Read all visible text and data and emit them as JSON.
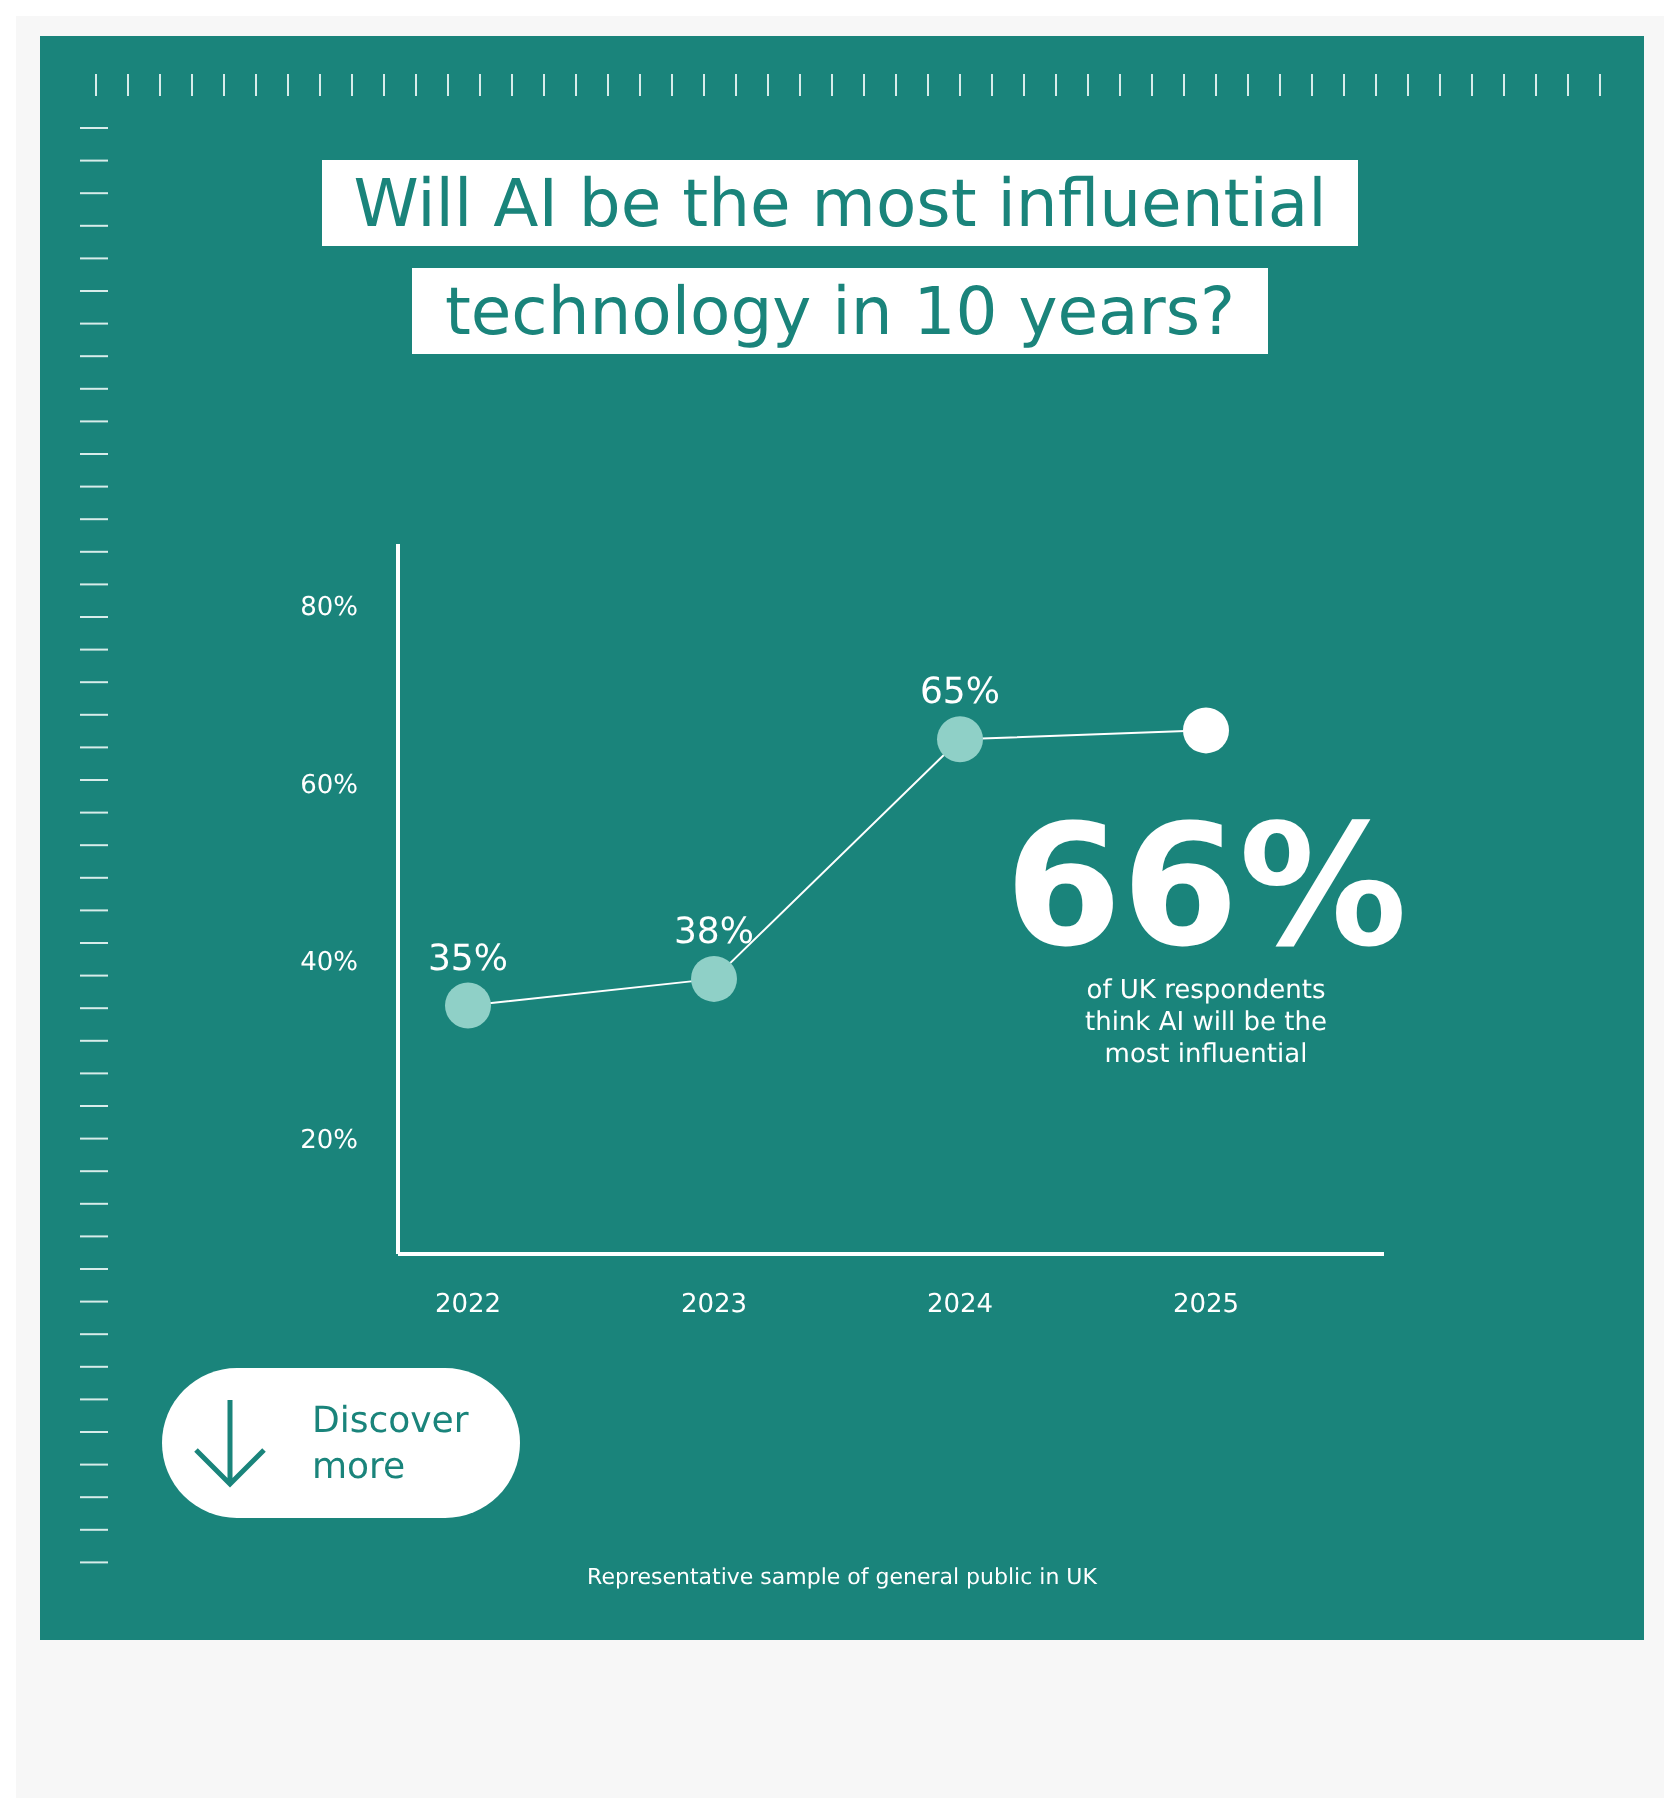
{
  "chart_data": {
    "type": "line",
    "title": "Will AI be the most influential technology in 10 years?",
    "categories": [
      "2022",
      "2023",
      "2024",
      "2025"
    ],
    "series": [
      {
        "color": "#ffffff",
        "colors": [
          "#8fd0c7",
          "#8fd0c7",
          "#8fd0c7",
          "#ffffff"
        ],
        "values": [
          35,
          38,
          65,
          66
        ],
        "value_labels": [
          "35%",
          "38%",
          "65%",
          null
        ]
      }
    ],
    "ylim": [
      7,
      87
    ],
    "yticks": [
      {
        "value": 20,
        "label": "20%"
      },
      {
        "value": 40,
        "label": "40%"
      },
      {
        "value": 60,
        "label": "60%"
      },
      {
        "value": 80,
        "label": "80%"
      }
    ],
    "marker": "circle",
    "annotations": [
      "66%",
      "of UK respondents think AI will be the most influential",
      "Discover more",
      "Representative sample of general public in UK"
    ]
  }
}
